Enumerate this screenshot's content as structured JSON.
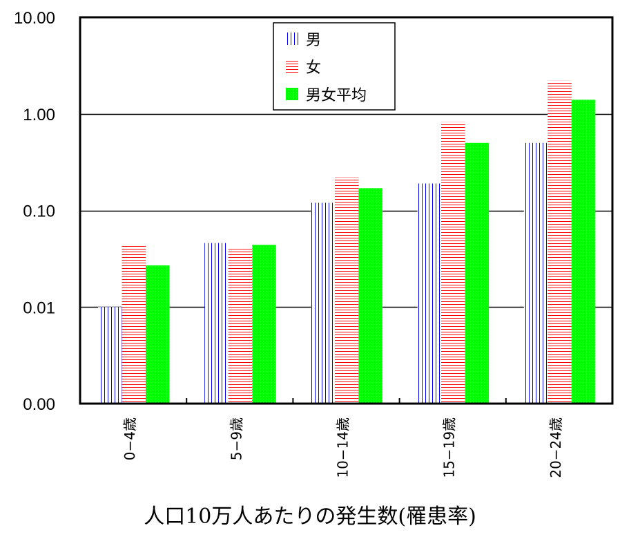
{
  "chart_data": {
    "type": "bar",
    "scale": "log",
    "title": "",
    "xlabel": "人口10万人あたりの発生数(罹患率)",
    "ylabel": "",
    "ylim": [
      0.001,
      10
    ],
    "yticks": [
      10,
      1,
      0.1,
      0.01,
      0.001
    ],
    "ytick_labels": [
      "10.00",
      "1.00",
      "0.10",
      "0.01",
      "0.00"
    ],
    "grid": true,
    "legend_position": "top-center-inside",
    "categories": [
      "0−4歳",
      "5−9歳",
      "10−14歳",
      "15−19歳",
      "20−24歳"
    ],
    "series": [
      {
        "name": "男",
        "pattern": "vertical-lines",
        "color": "#0000ff",
        "values": [
          0.01,
          0.046,
          0.12,
          0.19,
          0.5
        ]
      },
      {
        "name": "女",
        "pattern": "horizontal-lines",
        "color": "#ff0000",
        "values": [
          0.043,
          0.04,
          0.22,
          0.82,
          2.2
        ]
      },
      {
        "name": "男女平均",
        "pattern": "dotted-fill",
        "color": "#00ff00",
        "values": [
          0.027,
          0.044,
          0.17,
          0.5,
          1.4
        ]
      }
    ]
  },
  "caption": "人口10万人あたりの発生数(罹患率)"
}
